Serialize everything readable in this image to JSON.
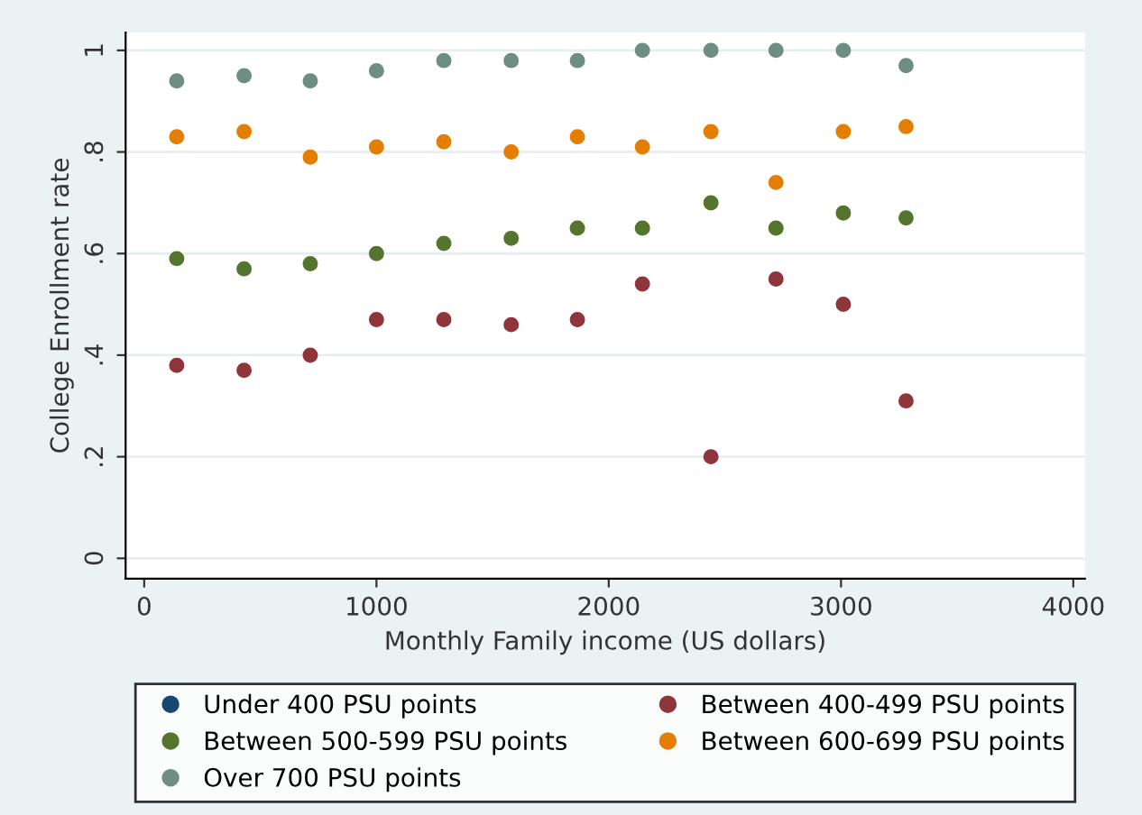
{
  "chart_data": {
    "type": "scatter",
    "xlabel": "Monthly Family income (US dollars)",
    "ylabel": "College Enrollment rate",
    "x": [
      140,
      430,
      715,
      1000,
      1290,
      1580,
      1865,
      2145,
      2440,
      2720,
      3010,
      3280
    ],
    "series": [
      {
        "name": "Under 400 PSU points",
        "color": "#1a476f",
        "values": [
          null,
          null,
          null,
          null,
          null,
          null,
          null,
          null,
          null,
          null,
          null,
          null
        ]
      },
      {
        "name": "Between 400-499 PSU points",
        "color": "#90353b",
        "values": [
          0.38,
          0.37,
          0.4,
          0.47,
          0.47,
          0.46,
          0.47,
          0.54,
          0.2,
          0.55,
          0.5,
          0.31
        ]
      },
      {
        "name": "Between 500-599 PSU points",
        "color": "#55752f",
        "values": [
          0.59,
          0.57,
          0.58,
          0.6,
          0.62,
          0.63,
          0.65,
          0.65,
          0.7,
          0.65,
          0.68,
          0.67
        ]
      },
      {
        "name": "Between 600-699 PSU points",
        "color": "#e37e00",
        "values": [
          0.83,
          0.84,
          0.79,
          0.81,
          0.82,
          0.8,
          0.83,
          0.81,
          0.84,
          0.74,
          0.84,
          0.85
        ]
      },
      {
        "name": "Over 700 PSU points",
        "color": "#6e8e84",
        "values": [
          0.94,
          0.95,
          0.94,
          0.96,
          0.98,
          0.98,
          0.98,
          1.0,
          1.0,
          1.0,
          1.0,
          0.97
        ]
      }
    ],
    "xlim": [
      -80,
      4050
    ],
    "xticks": [
      0,
      1000,
      2000,
      3000,
      4000
    ],
    "ylim": [
      -0.04,
      1.035
    ],
    "yticks": [
      0,
      {
        "value": 0.2,
        "label": ".2"
      },
      {
        "value": 0.4,
        "label": ".4"
      },
      {
        "value": 0.6,
        "label": ".6"
      },
      {
        "value": 0.8,
        "label": ".8"
      },
      1
    ],
    "grid": "y",
    "legend": "bottom",
    "marker": "circle"
  }
}
